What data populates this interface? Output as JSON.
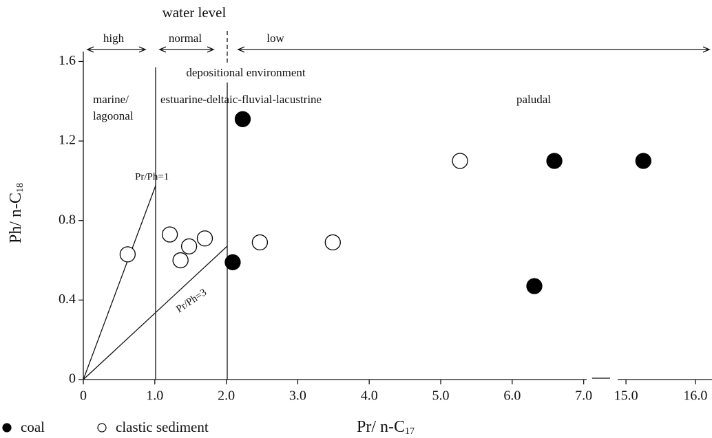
{
  "chart_data": {
    "type": "scatter",
    "title": "water level",
    "x_label": {
      "text": "Pr/ n-C",
      "subscript": "17"
    },
    "y_label": {
      "text": "Ph/ n-C",
      "subscript": "18"
    },
    "x_segments": [
      [
        0,
        7.1
      ],
      [
        14.85,
        16.24
      ]
    ],
    "ylim": [
      0,
      1.65
    ],
    "xticks": [
      0,
      {
        "value": 1,
        "label": "1.0"
      },
      {
        "value": 2,
        "label": "2.0"
      },
      {
        "value": 3,
        "label": "3.0"
      },
      {
        "value": 4,
        "label": "4.0"
      },
      {
        "value": 5,
        "label": "5.0"
      },
      {
        "value": 6,
        "label": "6.0"
      },
      {
        "value": 7,
        "label": "7.0"
      },
      {
        "value": 15,
        "label": "15.0"
      },
      {
        "value": 16,
        "label": "16.0"
      }
    ],
    "yticks": [
      0,
      0.4,
      0.8,
      1.2,
      1.6
    ],
    "annotations": {
      "high": "high",
      "normal": "normal",
      "low": "low",
      "environment": "depositional environment",
      "marine": [
        "marine/",
        "lagoonal"
      ],
      "estuarine": "estuarine-deltaic-fluvial-lacustrine",
      "paludal": "paludal",
      "ratio1": "Pr/Ph=1",
      "ratio3": "Pr/Ph=3"
    },
    "series": [
      {
        "name": "coal",
        "color": "#000000",
        "marker": "filled",
        "x": [
          2.09,
          2.23,
          6.31,
          6.59,
          15.25
        ],
        "values": [
          0.59,
          1.31,
          0.47,
          1.1,
          1.1
        ]
      },
      {
        "name": "clastic sediment",
        "color": "#000000",
        "marker": "open",
        "x": [
          0.62,
          1.21,
          1.36,
          1.48,
          1.7,
          2.47,
          3.49,
          5.27
        ],
        "values": [
          0.63,
          0.73,
          0.6,
          0.67,
          0.71,
          0.69,
          0.69,
          1.1
        ]
      }
    ]
  }
}
